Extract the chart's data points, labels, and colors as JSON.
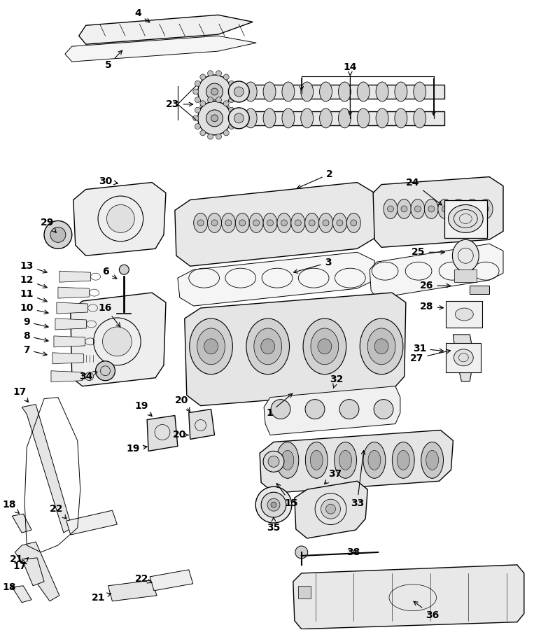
{
  "bg_color": "#ffffff",
  "line_color": "#000000",
  "label_color": "#000000",
  "fig_width": 7.83,
  "fig_height": 9.0,
  "dpi": 100
}
